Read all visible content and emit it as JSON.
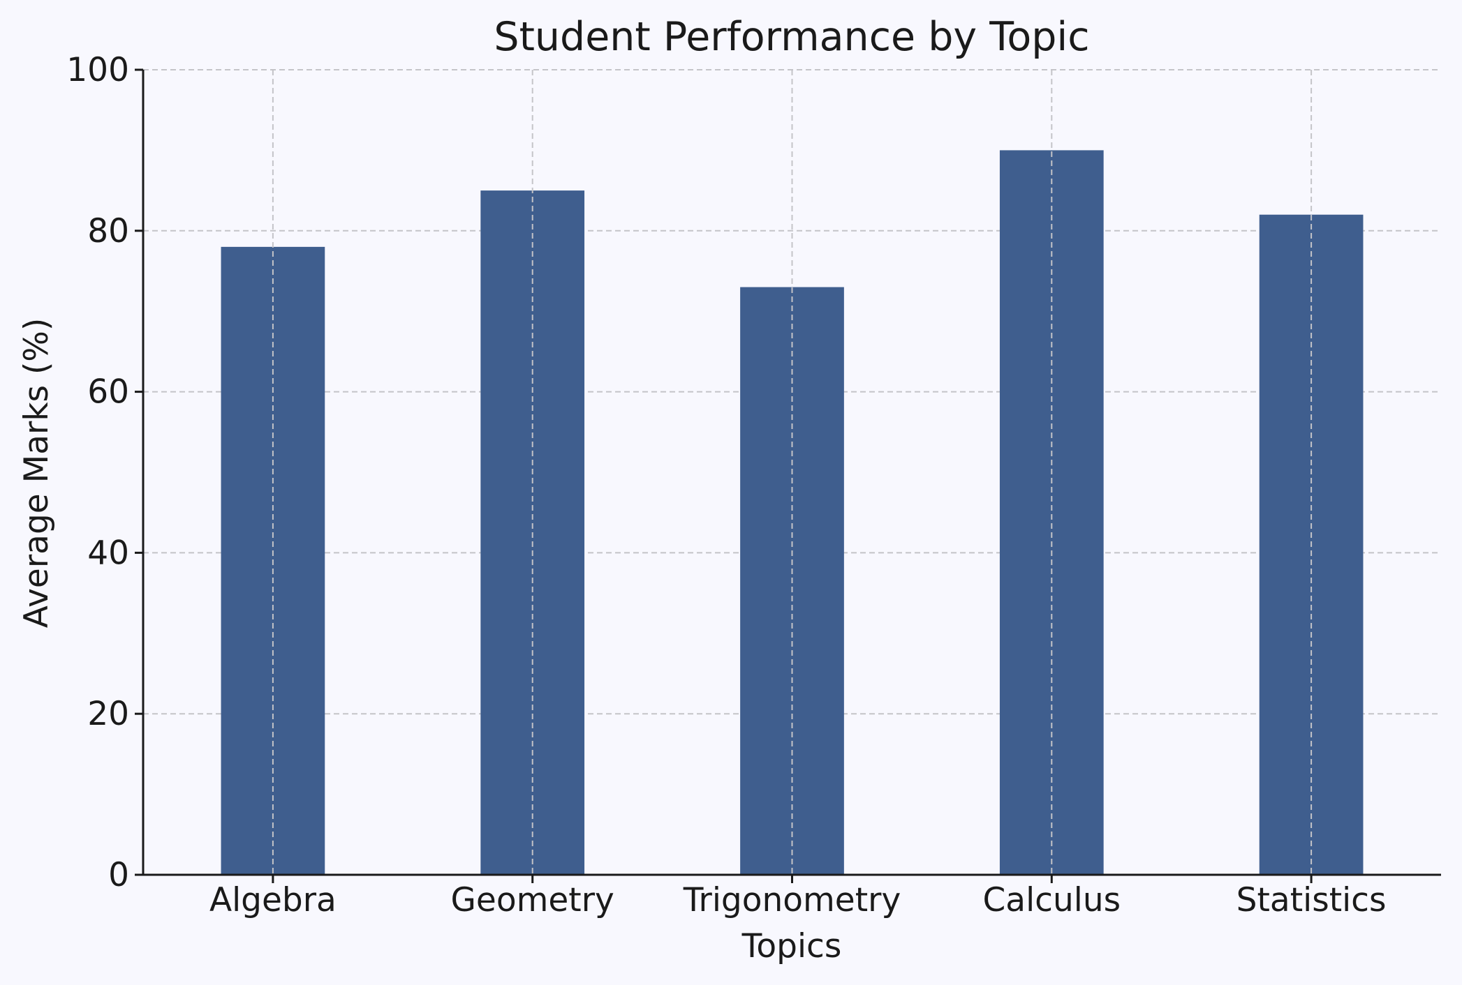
{
  "chart_data": {
    "type": "bar",
    "title": "Student Performance by Topic",
    "xlabel": "Topics",
    "ylabel": "Average Marks (%)",
    "categories": [
      "Algebra",
      "Geometry",
      "Trigonometry",
      "Calculus",
      "Statistics"
    ],
    "values": [
      78,
      85,
      73,
      90,
      82
    ],
    "ylim": [
      0,
      100
    ],
    "yticks": [
      0,
      20,
      40,
      60,
      80,
      100
    ],
    "grid": true,
    "bar_color": "#3f5e8e"
  }
}
